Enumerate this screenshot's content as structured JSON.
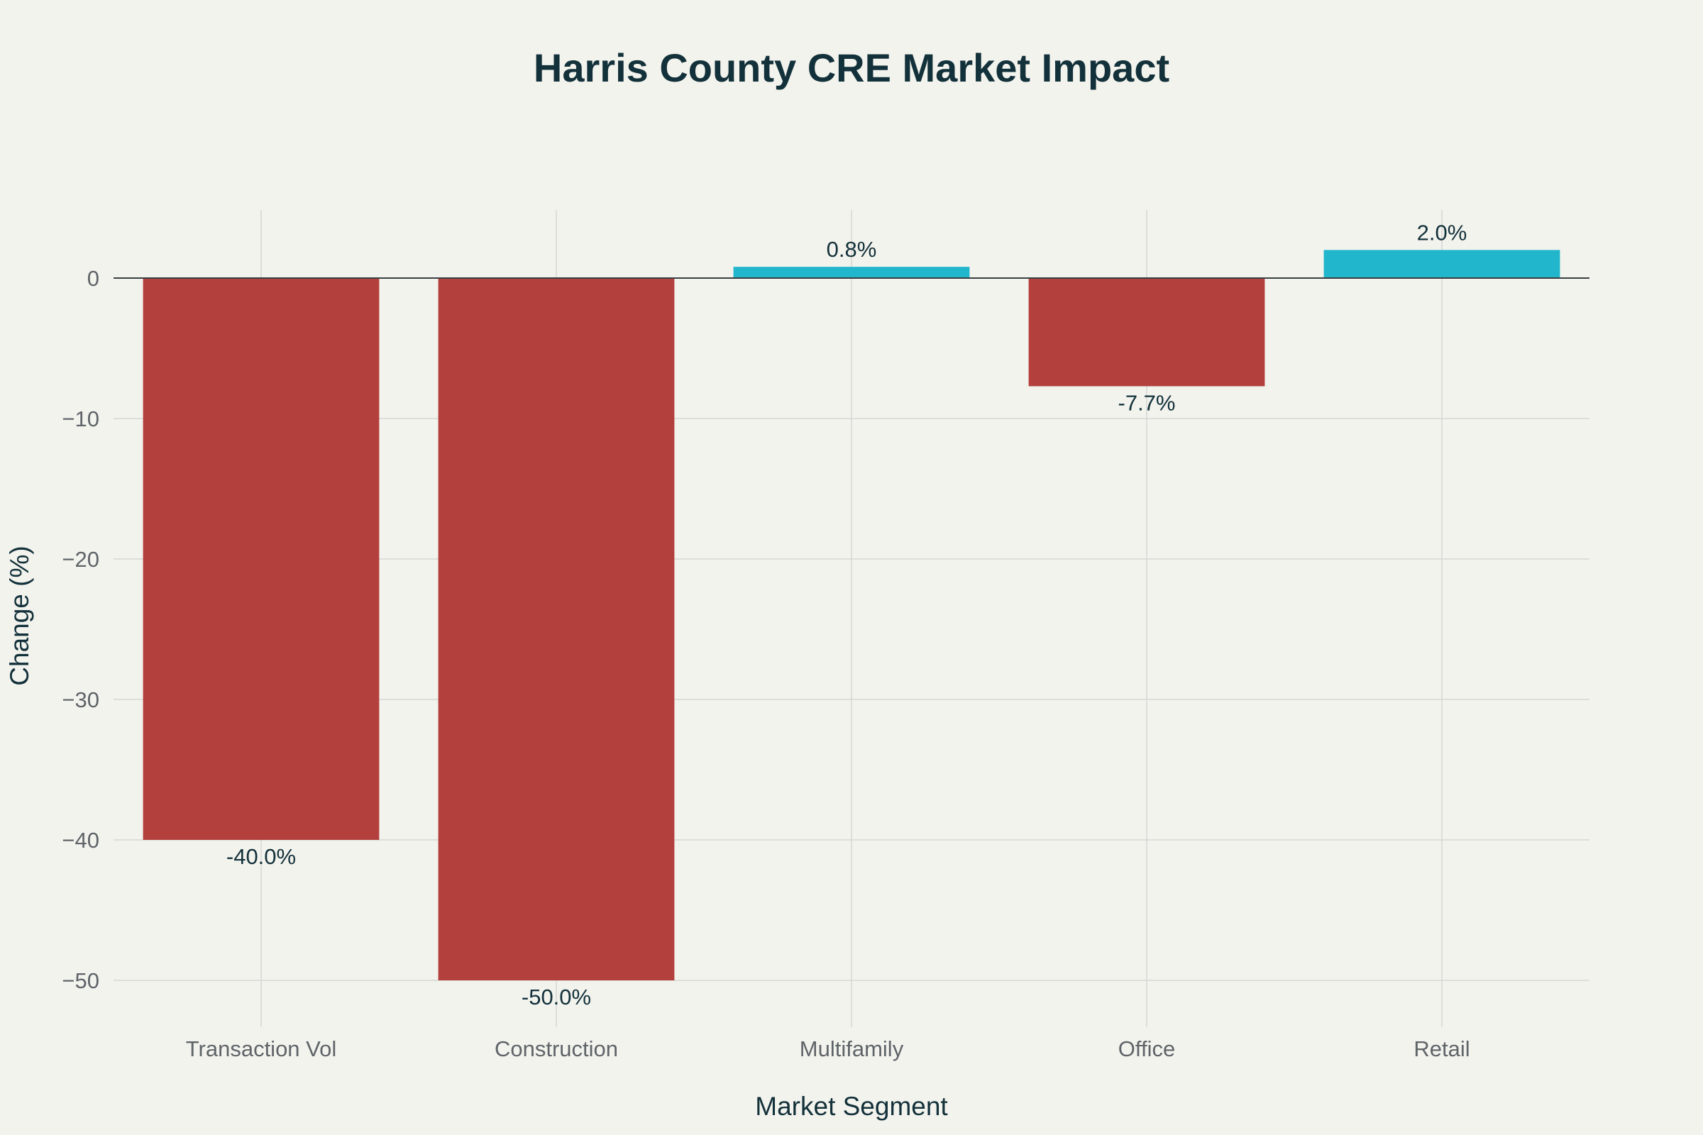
{
  "colors": {
    "negative": "#b3403d",
    "positive": "#21b6cb",
    "background": "#f3f3ee",
    "text": "#13313a"
  },
  "chart_data": {
    "type": "bar",
    "title": "Harris County CRE Market Impact",
    "xlabel": "Market Segment",
    "ylabel": "Change (%)",
    "categories": [
      "Transaction Vol",
      "Construction",
      "Multifamily",
      "Office",
      "Retail"
    ],
    "values": [
      -40.0,
      -50.0,
      0.8,
      -7.7,
      2.0
    ],
    "data_labels": [
      "-40.0%",
      "-50.0%",
      "0.8%",
      "-7.7%",
      "2.0%"
    ],
    "yticks": [
      0,
      -10,
      -20,
      -30,
      -40,
      -50
    ],
    "ytick_labels": [
      "0",
      "−10",
      "−20",
      "−30",
      "−40",
      "−50"
    ],
    "ylim": [
      -50,
      5
    ],
    "grid": true,
    "legend": "none"
  }
}
